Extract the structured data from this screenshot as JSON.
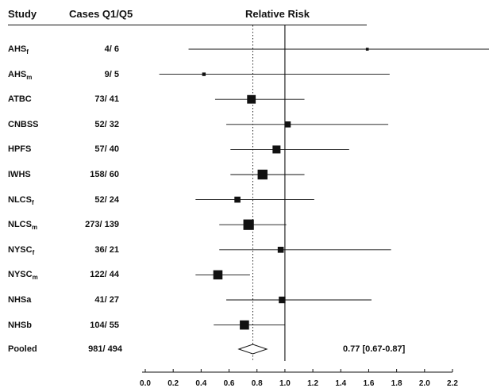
{
  "chart_data": {
    "type": "forest",
    "headers": {
      "study": "Study",
      "cases": "Cases Q1/Q5",
      "effect": "Relative Risk"
    },
    "x_ticks": [
      "0.0",
      "0.2",
      "0.4",
      "0.6",
      "0.8",
      "1.0",
      "1.2",
      "1.4",
      "1.6",
      "1.8",
      "2.0",
      "2.2"
    ],
    "xlim": [
      0,
      2.2
    ],
    "reference_line": 1.0,
    "pooled_reference_line": 0.77,
    "studies": [
      {
        "study": "AHS",
        "sub": "f",
        "cases": "4/  6",
        "rr": 1.59,
        "lo": 0.31,
        "hi": 2.9,
        "weight": 2
      },
      {
        "study": "AHS",
        "sub": "m",
        "cases": "9/  5",
        "rr": 0.42,
        "lo": 0.1,
        "hi": 1.75,
        "weight": 3
      },
      {
        "study": "ATBC",
        "sub": "",
        "cases": "73/  41",
        "rr": 0.76,
        "lo": 0.5,
        "hi": 1.14,
        "weight": 11
      },
      {
        "study": "CNBSS",
        "sub": "",
        "cases": "52/  32",
        "rr": 1.02,
        "lo": 0.58,
        "hi": 1.74,
        "weight": 7
      },
      {
        "study": "HPFS",
        "sub": "",
        "cases": "57/  40",
        "rr": 0.94,
        "lo": 0.61,
        "hi": 1.46,
        "weight": 10
      },
      {
        "study": "IWHS",
        "sub": "",
        "cases": "158/  60",
        "rr": 0.84,
        "lo": 0.61,
        "hi": 1.14,
        "weight": 13
      },
      {
        "study": "NLCS",
        "sub": "f",
        "cases": "52/  24",
        "rr": 0.66,
        "lo": 0.36,
        "hi": 1.21,
        "weight": 7
      },
      {
        "study": "NLCS",
        "sub": "m",
        "cases": "273/ 139",
        "rr": 0.74,
        "lo": 0.53,
        "hi": 1.01,
        "weight": 14
      },
      {
        "study": "NYSC",
        "sub": "f",
        "cases": "36/  21",
        "rr": 0.97,
        "lo": 0.53,
        "hi": 1.76,
        "weight": 7
      },
      {
        "study": "NYSC",
        "sub": "m",
        "cases": "122/  44",
        "rr": 0.52,
        "lo": 0.36,
        "hi": 0.75,
        "weight": 12
      },
      {
        "study": "NHSa",
        "sub": "",
        "cases": "41/  27",
        "rr": 0.98,
        "lo": 0.58,
        "hi": 1.62,
        "weight": 8
      },
      {
        "study": "NHSb",
        "sub": "",
        "cases": "104/  55",
        "rr": 0.71,
        "lo": 0.49,
        "hi": 1.0,
        "weight": 12
      }
    ],
    "pooled": {
      "study": "Pooled",
      "cases": "981/ 494",
      "rr": 0.77,
      "lo": 0.67,
      "hi": 0.87,
      "text": "0.77 [0.67-0.87]"
    }
  }
}
